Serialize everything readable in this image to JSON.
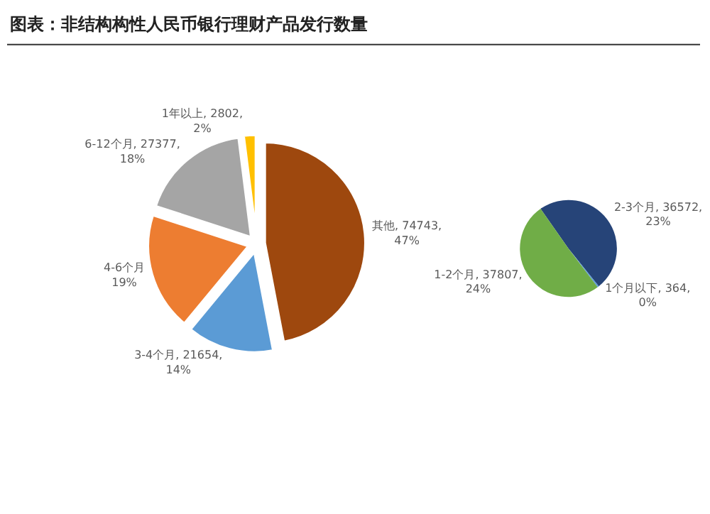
{
  "chart_data": [
    {
      "type": "pie",
      "title": "图表：非结构构性人民币银行理财产品发行数量",
      "categories": [
        "其他",
        "3-4个月",
        "4-6个月",
        "6-12个月",
        "1年以上"
      ],
      "values": [
        47,
        14,
        19,
        18,
        2
      ],
      "value_labels": [
        "74743, 47%",
        "21654, 14%",
        "19%",
        "27377, 18%",
        "2802, 2%"
      ],
      "colors": [
        "#9e480e",
        "#5b9bd5",
        "#ed7d31",
        "#a5a5a5",
        "#ffc000"
      ]
    },
    {
      "type": "pie",
      "categories": [
        "2-3个月",
        "1个月以下",
        "1-2个月"
      ],
      "values": [
        36572,
        364,
        37807
      ],
      "value_labels": [
        "36572, 23%",
        "364, 0%",
        "37807, 24%"
      ],
      "colors": [
        "#264478",
        "#5b9bd5",
        "#70ad47"
      ]
    }
  ]
}
